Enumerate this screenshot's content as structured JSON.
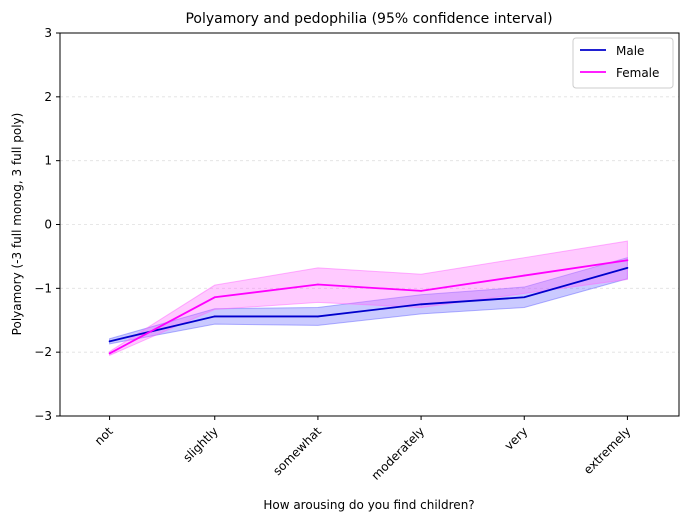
{
  "chart_data": {
    "type": "line",
    "title": "Polyamory and pedophilia (95% confidence interval)",
    "xlabel": "How arousing do you find children?",
    "ylabel": "Polyamory (-3 full monog, 3 full poly)",
    "categories": [
      "not",
      "slightly",
      "somewhat",
      "moderately",
      "very",
      "extremely"
    ],
    "ylim": [
      -3,
      3
    ],
    "yticks": [
      -3,
      -2,
      -1,
      0,
      1,
      2,
      3
    ],
    "grid": "y-dashed",
    "legend_position": "top-right",
    "series": [
      {
        "name": "Male",
        "color": "#0000cc",
        "fill": "#6666ff",
        "values": [
          -1.83,
          -1.44,
          -1.44,
          -1.25,
          -1.14,
          -0.68
        ],
        "lower": [
          -1.87,
          -1.56,
          -1.58,
          -1.4,
          -1.3,
          -0.85
        ],
        "upper": [
          -1.79,
          -1.32,
          -1.3,
          -1.1,
          -0.98,
          -0.52
        ]
      },
      {
        "name": "Female",
        "color": "#ff00ff",
        "fill": "#ff66ff",
        "values": [
          -2.02,
          -1.14,
          -0.94,
          -1.04,
          -0.8,
          -0.56
        ],
        "lower": [
          -2.05,
          -1.33,
          -1.22,
          -1.3,
          -1.08,
          -0.86
        ],
        "upper": [
          -1.99,
          -0.95,
          -0.68,
          -0.78,
          -0.52,
          -0.26
        ]
      }
    ]
  }
}
